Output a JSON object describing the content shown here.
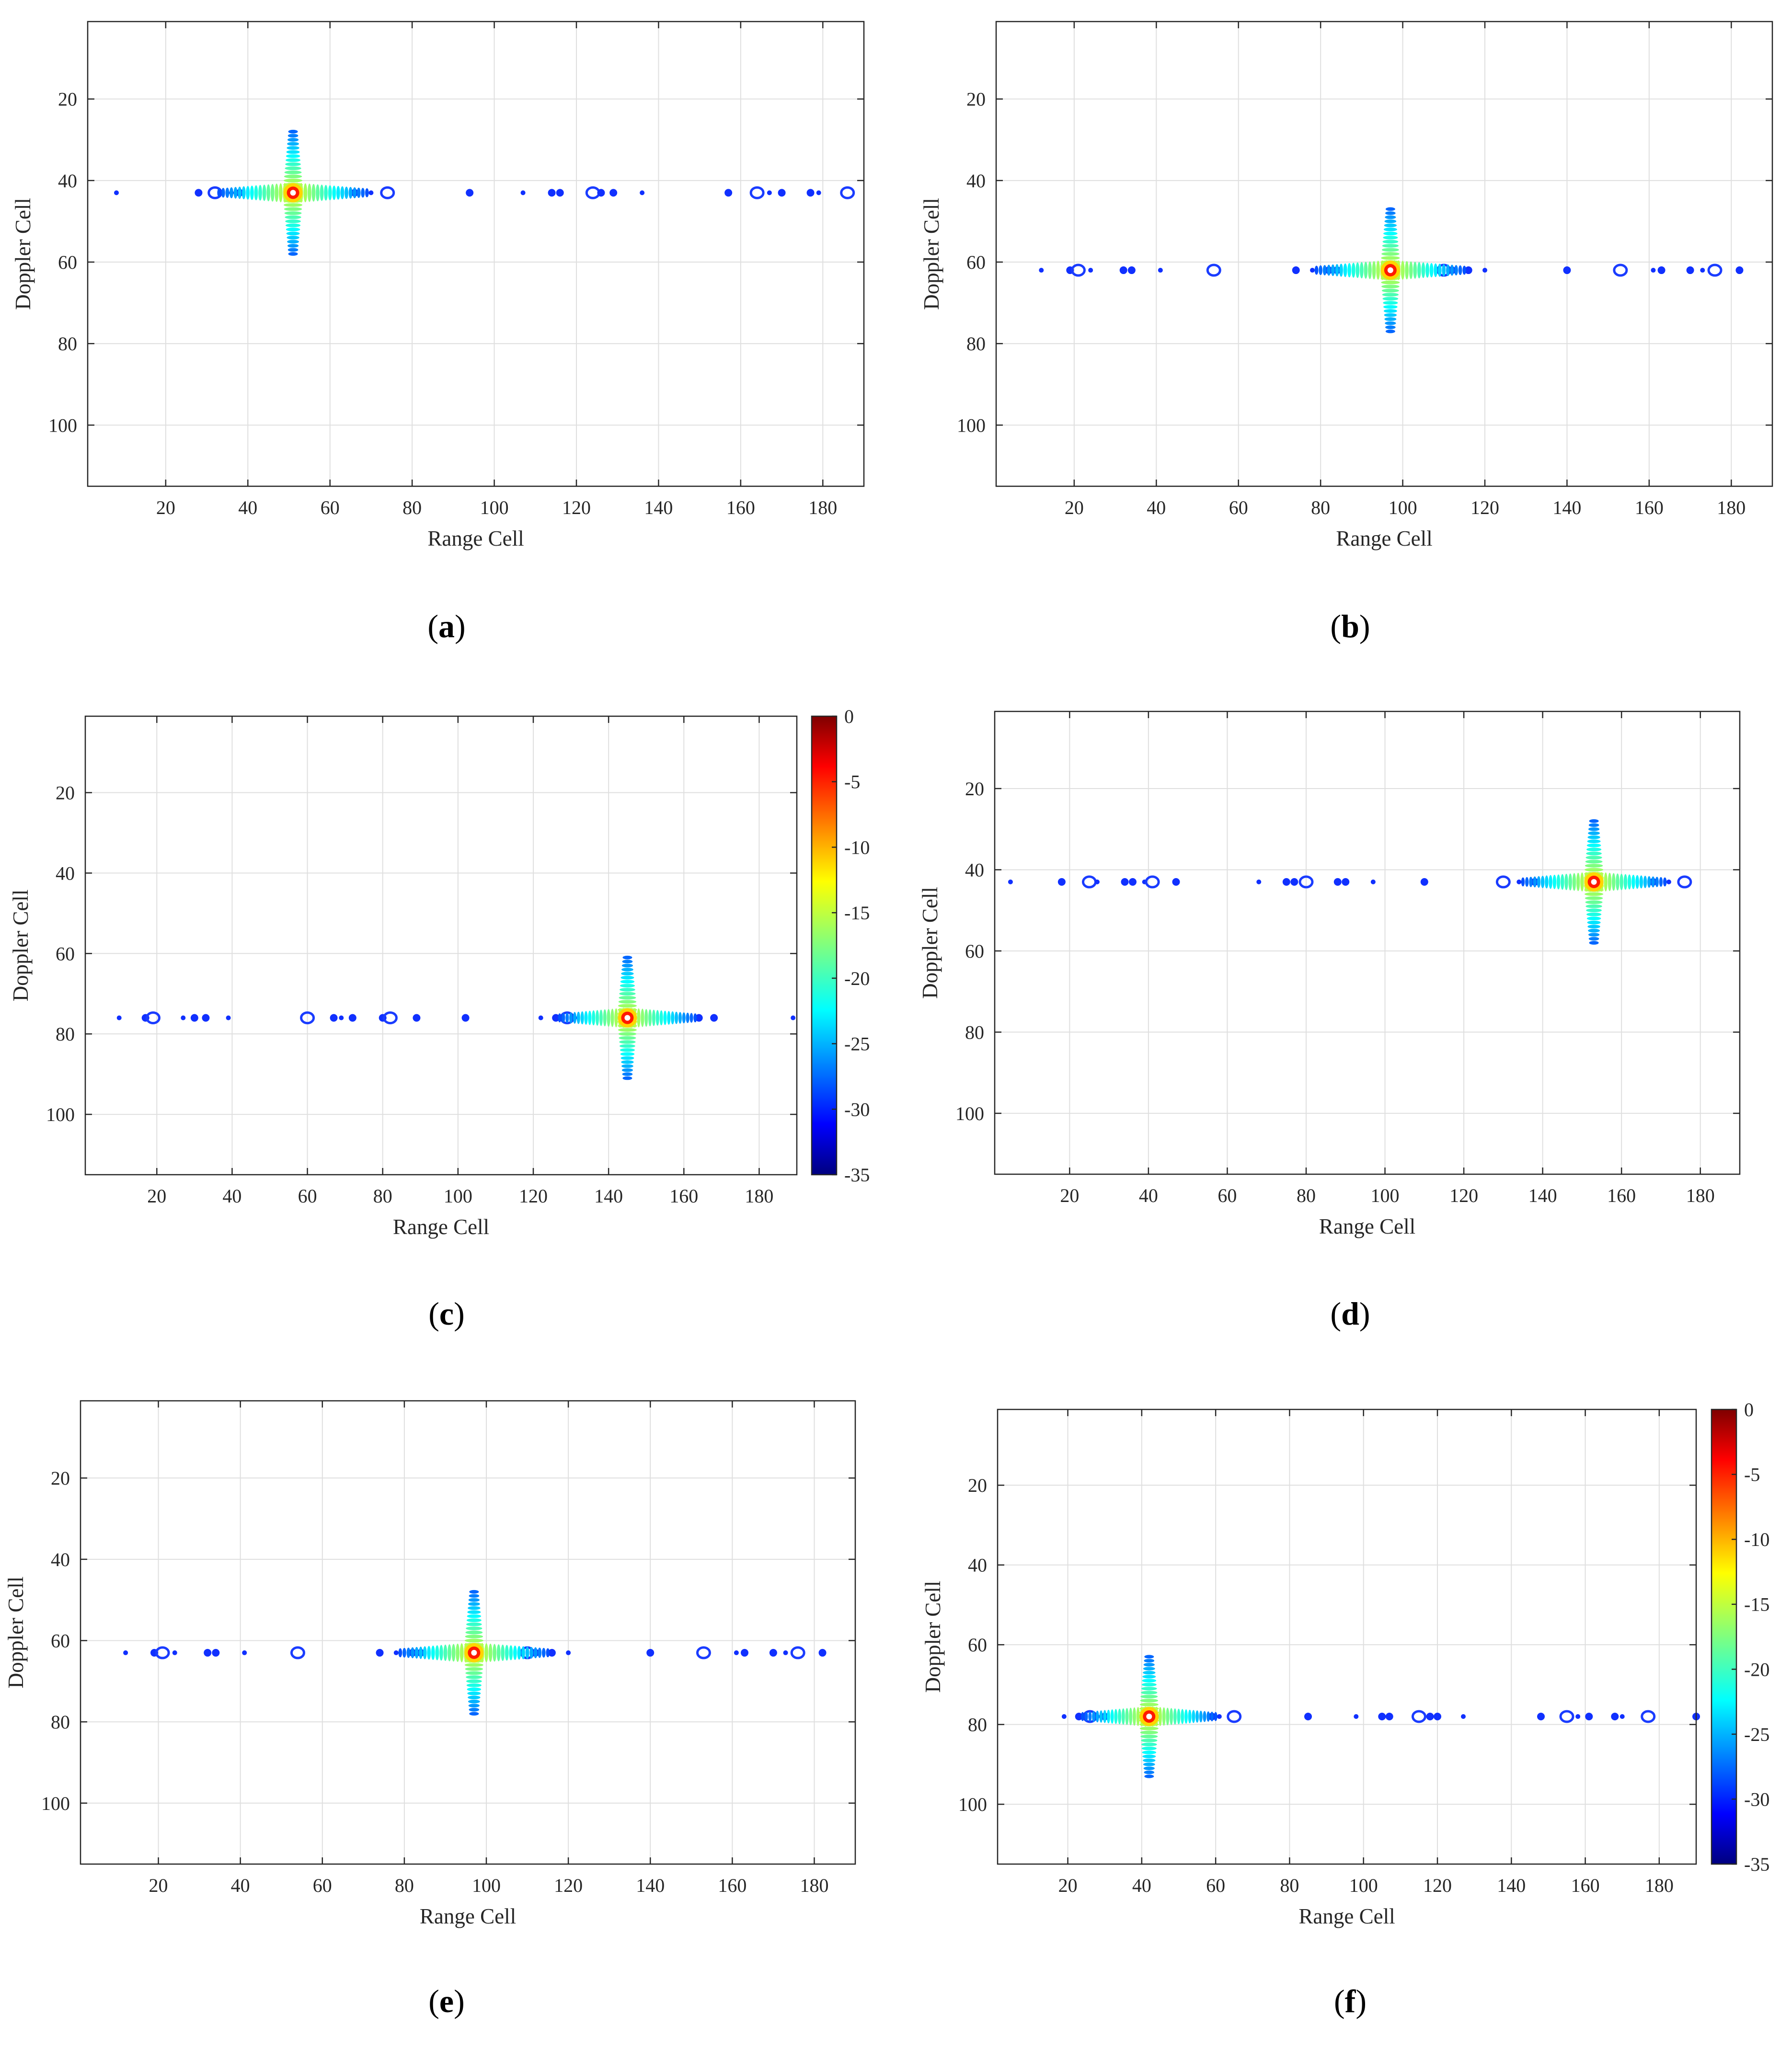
{
  "chart_data": [
    {
      "panel": "a",
      "type": "heatmap",
      "xlabel": "Range Cell",
      "ylabel": "Doppler Cell",
      "xlim": [
        1,
        190
      ],
      "ylim": [
        1,
        115
      ],
      "y_reversed": true,
      "xticks": [
        20,
        40,
        60,
        80,
        100,
        120,
        140,
        160,
        180
      ],
      "yticks": [
        20,
        40,
        60,
        80,
        100
      ],
      "grid": true,
      "colorbar": false,
      "peak": {
        "range": 51,
        "doppler": 43,
        "level_db": 0
      },
      "sidelobe_points": [
        8,
        28,
        32,
        36,
        38,
        66,
        70,
        74,
        94,
        107,
        114,
        116,
        124,
        126,
        129,
        136,
        157,
        164,
        167,
        170,
        177,
        179,
        186
      ]
    },
    {
      "panel": "b",
      "type": "heatmap",
      "xlabel": "Range Cell",
      "ylabel": "Doppler Cell",
      "xlim": [
        1,
        190
      ],
      "ylim": [
        1,
        115
      ],
      "y_reversed": true,
      "xticks": [
        20,
        40,
        60,
        80,
        100,
        120,
        140,
        160,
        180
      ],
      "yticks": [
        20,
        40,
        60,
        80,
        100
      ],
      "grid": true,
      "colorbar": false,
      "peak": {
        "range": 97,
        "doppler": 62,
        "level_db": 0
      },
      "sidelobe_points": [
        12,
        19,
        21,
        24,
        32,
        34,
        41,
        54,
        74,
        78,
        82,
        84,
        110,
        112,
        116,
        120,
        140,
        153,
        161,
        163,
        170,
        173,
        176,
        182
      ]
    },
    {
      "panel": "c",
      "type": "heatmap",
      "xlabel": "Range Cell",
      "ylabel": "Doppler Cell",
      "xlim": [
        1,
        190
      ],
      "ylim": [
        1,
        115
      ],
      "y_reversed": true,
      "xticks": [
        20,
        40,
        60,
        80,
        100,
        120,
        140,
        160,
        180
      ],
      "yticks": [
        20,
        40,
        60,
        80,
        100
      ],
      "grid": true,
      "colorbar": true,
      "colorbar_ticks": [
        "0",
        "-5",
        "-10",
        "-15",
        "-20",
        "-25",
        "-30",
        "-35"
      ],
      "clim": [
        -35,
        0
      ],
      "peak": {
        "range": 145,
        "doppler": 76,
        "level_db": 0
      },
      "sidelobe_points": [
        10,
        17,
        19,
        27,
        30,
        33,
        39,
        60,
        67,
        69,
        72,
        80,
        82,
        89,
        102,
        122,
        126,
        129,
        131,
        164,
        168,
        189
      ]
    },
    {
      "panel": "d",
      "type": "heatmap",
      "xlabel": "Range Cell",
      "ylabel": "Doppler Cell",
      "xlim": [
        1,
        190
      ],
      "ylim": [
        1,
        115
      ],
      "y_reversed": true,
      "xticks": [
        20,
        40,
        60,
        80,
        100,
        120,
        140,
        160,
        180
      ],
      "yticks": [
        20,
        40,
        60,
        80,
        100
      ],
      "grid": true,
      "colorbar": false,
      "peak": {
        "range": 153,
        "doppler": 43,
        "level_db": 0
      },
      "sidelobe_points": [
        5,
        18,
        25,
        27,
        34,
        36,
        39,
        41,
        47,
        68,
        75,
        77,
        80,
        88,
        90,
        97,
        110,
        130,
        134,
        138,
        168,
        172,
        176
      ]
    },
    {
      "panel": "e",
      "type": "heatmap",
      "xlabel": "Range Cell",
      "ylabel": "Doppler Cell",
      "xlim": [
        1,
        190
      ],
      "ylim": [
        1,
        115
      ],
      "y_reversed": true,
      "xticks": [
        20,
        40,
        60,
        80,
        100,
        120,
        140,
        160,
        180
      ],
      "yticks": [
        20,
        40,
        60,
        80,
        100
      ],
      "grid": true,
      "colorbar": false,
      "peak": {
        "range": 97,
        "doppler": 63,
        "level_db": 0
      },
      "sidelobe_points": [
        12,
        19,
        21,
        24,
        32,
        34,
        41,
        54,
        74,
        78,
        82,
        84,
        110,
        112,
        116,
        120,
        140,
        153,
        161,
        163,
        170,
        173,
        176,
        182
      ]
    },
    {
      "panel": "f",
      "type": "heatmap",
      "xlabel": "Range Cell",
      "ylabel": "Doppler Cell",
      "xlim": [
        1,
        190
      ],
      "ylim": [
        1,
        115
      ],
      "y_reversed": true,
      "xticks": [
        20,
        40,
        60,
        80,
        100,
        120,
        140,
        160,
        180
      ],
      "yticks": [
        20,
        40,
        60,
        80,
        100
      ],
      "grid": true,
      "colorbar": true,
      "colorbar_ticks": [
        "0",
        "-5",
        "-10",
        "-15",
        "-20",
        "-25",
        "-30",
        "-35"
      ],
      "clim": [
        -35,
        0
      ],
      "peak": {
        "range": 42,
        "doppler": 78,
        "level_db": 0
      },
      "sidelobe_points": [
        19,
        23,
        26,
        28,
        30,
        59,
        61,
        65,
        85,
        98,
        105,
        107,
        115,
        118,
        120,
        127,
        148,
        155,
        158,
        161,
        168,
        170,
        177,
        190
      ]
    }
  ],
  "captions": [
    "a",
    "b",
    "c",
    "d",
    "e",
    "f"
  ]
}
